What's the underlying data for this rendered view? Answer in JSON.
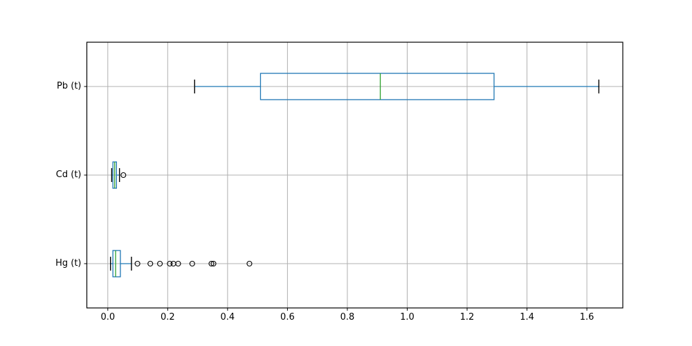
{
  "chart_data": {
    "type": "box",
    "orientation": "horizontal",
    "title": "",
    "xlabel": "",
    "ylabel": "",
    "grid": true,
    "legend": false,
    "xlim": [
      -0.07,
      1.72
    ],
    "x_ticks": [
      0.0,
      0.2,
      0.4,
      0.6,
      0.8,
      1.0,
      1.2,
      1.4,
      1.6
    ],
    "x_tick_labels": [
      "0.0",
      "0.2",
      "0.4",
      "0.6",
      "0.8",
      "1.0",
      "1.2",
      "1.4",
      "1.6"
    ],
    "categories_bottom_to_top": [
      "Hg (t)",
      "Cd (t)",
      "Pb (t)"
    ],
    "series": [
      {
        "name": "Hg (t)",
        "whisker_low": 0.009,
        "q1": 0.017,
        "median": 0.026,
        "q3": 0.042,
        "whisker_high": 0.079,
        "outliers": [
          0.099,
          0.142,
          0.174,
          0.207,
          0.219,
          0.235,
          0.282,
          0.346,
          0.353,
          0.473
        ]
      },
      {
        "name": "Cd (t)",
        "whisker_low": 0.013,
        "q1": 0.017,
        "median": 0.023,
        "q3": 0.029,
        "whisker_high": 0.039,
        "outliers": [
          0.052
        ]
      },
      {
        "name": "Pb (t)",
        "whisker_low": 0.29,
        "q1": 0.51,
        "median": 0.91,
        "q3": 1.29,
        "whisker_high": 1.64,
        "outliers": []
      }
    ],
    "colors": {
      "box": "#1f77b4",
      "whisker": "#1f77b4",
      "median": "#2ca02c",
      "cap": "#000000",
      "outlier": "#000000",
      "grid": "#b0b0b0",
      "axis": "#000000",
      "background": "#ffffff",
      "text": "#000000"
    }
  }
}
